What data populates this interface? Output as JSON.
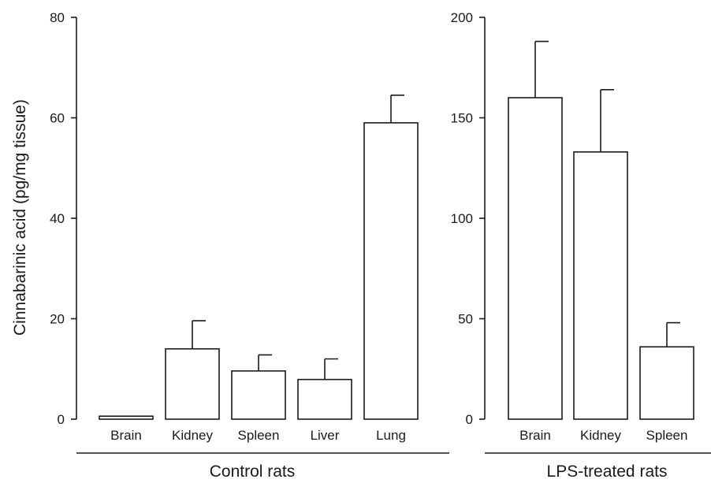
{
  "chart_data": [
    {
      "type": "bar",
      "group_label": "Control rats",
      "ylabel": "Cinnabarinic acid (pg/mg tissue)",
      "ylim": [
        0,
        80
      ],
      "yticks": [
        0,
        20,
        40,
        60,
        80
      ],
      "categories": [
        "Brain",
        "Kidney",
        "Spleen",
        "Liver",
        "Lung"
      ],
      "values": [
        0.6,
        14,
        9.6,
        7.9,
        59
      ],
      "errors": [
        0,
        5.6,
        3.2,
        4.1,
        5.5
      ]
    },
    {
      "type": "bar",
      "group_label": "LPS-treated rats",
      "ylim": [
        0,
        200
      ],
      "yticks": [
        0,
        50,
        100,
        150,
        200
      ],
      "categories": [
        "Brain",
        "Kidney",
        "Spleen"
      ],
      "values": [
        160,
        133,
        36
      ],
      "errors": [
        28,
        31,
        12
      ]
    }
  ]
}
